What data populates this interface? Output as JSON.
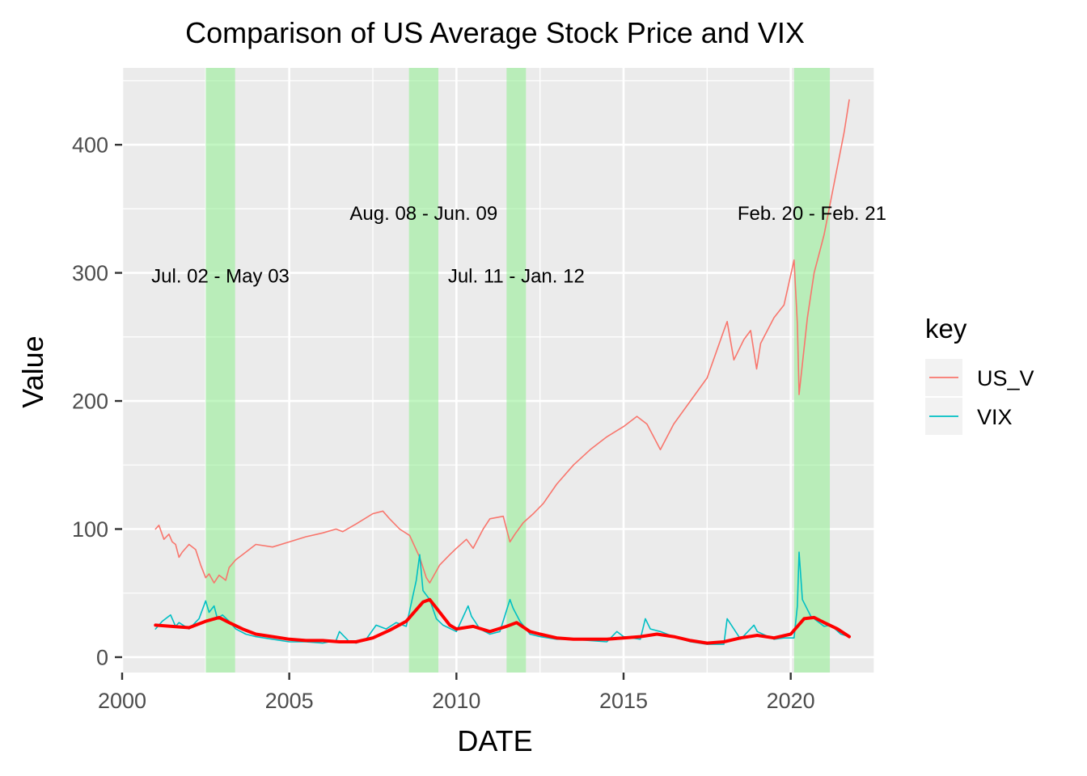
{
  "chart_data": {
    "type": "line",
    "title": "Comparison of US Average Stock Price and VIX",
    "xlabel": "DATE",
    "ylabel": "Value",
    "xlim": [
      2000.0,
      2022.5
    ],
    "ylim": [
      -12,
      460
    ],
    "x_ticks": [
      2000,
      2005,
      2010,
      2015,
      2020
    ],
    "x_tick_labels": [
      "2000",
      "2005",
      "2010",
      "2015",
      "2020"
    ],
    "y_ticks": [
      0,
      100,
      200,
      300,
      400
    ],
    "y_tick_labels": [
      "0",
      "100",
      "200",
      "300",
      "400"
    ],
    "grid": true,
    "legend": {
      "title": "key",
      "position": "right",
      "entries": [
        "US_V",
        "VIX"
      ]
    },
    "shaded_periods": [
      {
        "label": "Jul. 02 - May 03",
        "start": 2002.5,
        "end": 2003.38,
        "label_y": 298
      },
      {
        "label": "Aug. 08 - Jun. 09",
        "start": 2008.58,
        "end": 2009.46,
        "label_y": 347
      },
      {
        "label": "Jul. 11 - Jan. 12",
        "start": 2011.5,
        "end": 2012.08,
        "label_y": 298
      },
      {
        "label": "Feb. 20 - Feb. 21",
        "start": 2020.1,
        "end": 2021.17,
        "label_y": 347
      }
    ],
    "series": [
      {
        "name": "US_V",
        "color": "#F8766D",
        "x": [
          2001.0,
          2001.1,
          2001.25,
          2001.4,
          2001.5,
          2001.6,
          2001.7,
          2001.8,
          2002.0,
          2002.2,
          2002.35,
          2002.5,
          2002.6,
          2002.75,
          2002.9,
          2003.0,
          2003.1,
          2003.2,
          2003.4,
          2003.6,
          2004.0,
          2004.5,
          2005.0,
          2005.5,
          2006.0,
          2006.4,
          2006.6,
          2007.0,
          2007.5,
          2007.8,
          2008.0,
          2008.3,
          2008.6,
          2008.9,
          2009.1,
          2009.2,
          2009.5,
          2009.8,
          2010.0,
          2010.3,
          2010.5,
          2010.8,
          2011.0,
          2011.4,
          2011.6,
          2011.75,
          2012.0,
          2012.3,
          2012.6,
          2013.0,
          2013.5,
          2014.0,
          2014.5,
          2015.0,
          2015.4,
          2015.7,
          2015.9,
          2016.1,
          2016.5,
          2017.0,
          2017.5,
          2018.0,
          2018.1,
          2018.3,
          2018.6,
          2018.8,
          2018.98,
          2019.1,
          2019.5,
          2019.8,
          2020.1,
          2020.2,
          2020.25,
          2020.5,
          2020.7,
          2020.9,
          2021.0,
          2021.3,
          2021.6,
          2021.75
        ],
        "values": [
          100,
          103,
          92,
          96,
          90,
          88,
          78,
          82,
          88,
          84,
          72,
          62,
          65,
          58,
          64,
          62,
          60,
          70,
          76,
          80,
          88,
          86,
          90,
          94,
          97,
          100,
          98,
          104,
          112,
          114,
          108,
          100,
          95,
          78,
          62,
          58,
          72,
          80,
          85,
          92,
          85,
          100,
          108,
          110,
          90,
          96,
          105,
          112,
          120,
          135,
          150,
          162,
          172,
          180,
          188,
          182,
          172,
          162,
          182,
          200,
          218,
          255,
          262,
          232,
          248,
          255,
          225,
          245,
          265,
          275,
          310,
          260,
          205,
          265,
          300,
          320,
          330,
          370,
          410,
          435
        ]
      },
      {
        "name": "VIX",
        "color": "#00BFC4",
        "x": [
          2001.0,
          2001.2,
          2001.45,
          2001.6,
          2001.7,
          2002.0,
          2002.3,
          2002.5,
          2002.6,
          2002.75,
          2002.85,
          2003.0,
          2003.2,
          2003.4,
          2003.7,
          2004.0,
          2004.5,
          2005.0,
          2005.5,
          2006.0,
          2006.4,
          2006.5,
          2006.8,
          2007.0,
          2007.3,
          2007.6,
          2007.9,
          2008.2,
          2008.5,
          2008.8,
          2008.9,
          2009.0,
          2009.2,
          2009.4,
          2009.6,
          2010.0,
          2010.35,
          2010.45,
          2010.7,
          2011.0,
          2011.3,
          2011.6,
          2011.7,
          2011.9,
          2012.2,
          2012.5,
          2013.0,
          2013.5,
          2014.0,
          2014.5,
          2014.8,
          2015.0,
          2015.5,
          2015.65,
          2015.8,
          2016.1,
          2016.5,
          2017.0,
          2017.5,
          2018.0,
          2018.1,
          2018.5,
          2018.9,
          2019.0,
          2019.5,
          2019.8,
          2020.1,
          2020.2,
          2020.25,
          2020.35,
          2020.6,
          2020.8,
          2021.0,
          2021.2,
          2021.5,
          2021.75
        ],
        "values": [
          22,
          28,
          33,
          24,
          27,
          22,
          30,
          44,
          35,
          40,
          30,
          33,
          28,
          22,
          18,
          16,
          14,
          12,
          12,
          11,
          13,
          20,
          12,
          11,
          14,
          25,
          22,
          27,
          24,
          60,
          80,
          52,
          45,
          30,
          25,
          20,
          40,
          32,
          22,
          18,
          20,
          45,
          38,
          28,
          18,
          16,
          14,
          14,
          13,
          12,
          20,
          16,
          14,
          30,
          22,
          20,
          16,
          12,
          10,
          10,
          30,
          14,
          25,
          20,
          14,
          15,
          15,
          40,
          82,
          45,
          32,
          28,
          24,
          25,
          18,
          16
        ]
      },
      {
        "name": "",
        "color": "#FF0000",
        "x": [
          2001.0,
          2002.0,
          2002.5,
          2002.9,
          2003.2,
          2003.6,
          2004.0,
          2004.5,
          2005.0,
          2005.5,
          2006.0,
          2006.5,
          2007.0,
          2007.5,
          2008.0,
          2008.5,
          2009.0,
          2009.2,
          2009.5,
          2009.8,
          2010.0,
          2010.5,
          2011.0,
          2011.5,
          2011.8,
          2012.2,
          2012.5,
          2013.0,
          2013.5,
          2014.0,
          2014.5,
          2015.0,
          2015.5,
          2016.0,
          2016.5,
          2017.0,
          2017.5,
          2018.0,
          2018.5,
          2019.0,
          2019.5,
          2020.0,
          2020.4,
          2020.7,
          2021.0,
          2021.4,
          2021.75
        ],
        "values": [
          25,
          23,
          28,
          31,
          27,
          22,
          18,
          16,
          14,
          13,
          13,
          12,
          12,
          15,
          21,
          28,
          43,
          45,
          35,
          25,
          22,
          24,
          20,
          24,
          27,
          20,
          18,
          15,
          14,
          14,
          14,
          15,
          16,
          18,
          16,
          13,
          11,
          12,
          15,
          17,
          15,
          18,
          30,
          31,
          27,
          22,
          16
        ]
      }
    ]
  }
}
